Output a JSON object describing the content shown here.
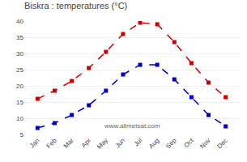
{
  "chart_data": {
    "type": "line",
    "title": "Biskra : temperatures (°C)",
    "categories": [
      "Jan",
      "Feb",
      "Mar",
      "Apr",
      "May",
      "Jun",
      "Jul",
      "Aug",
      "Sep",
      "Oct",
      "Nov",
      "Dec"
    ],
    "series": [
      {
        "color": "#cc0000",
        "marker": "square",
        "line_style": "dashed",
        "values": [
          16,
          18.5,
          21.5,
          25.5,
          30.5,
          36,
          39.5,
          39,
          33.5,
          27,
          21,
          16.5
        ]
      },
      {
        "color": "#0000cc",
        "marker": "square",
        "line_style": "dashed",
        "values": [
          7,
          8.5,
          11,
          14,
          18.5,
          23.5,
          26.5,
          26.5,
          22,
          16.5,
          11,
          7.5
        ]
      }
    ],
    "ylim": [
      5,
      40
    ],
    "yticks": [
      5,
      10,
      15,
      20,
      25,
      30,
      35,
      40
    ],
    "grid": true,
    "annotations": [
      "www.allmetsat.com"
    ]
  }
}
